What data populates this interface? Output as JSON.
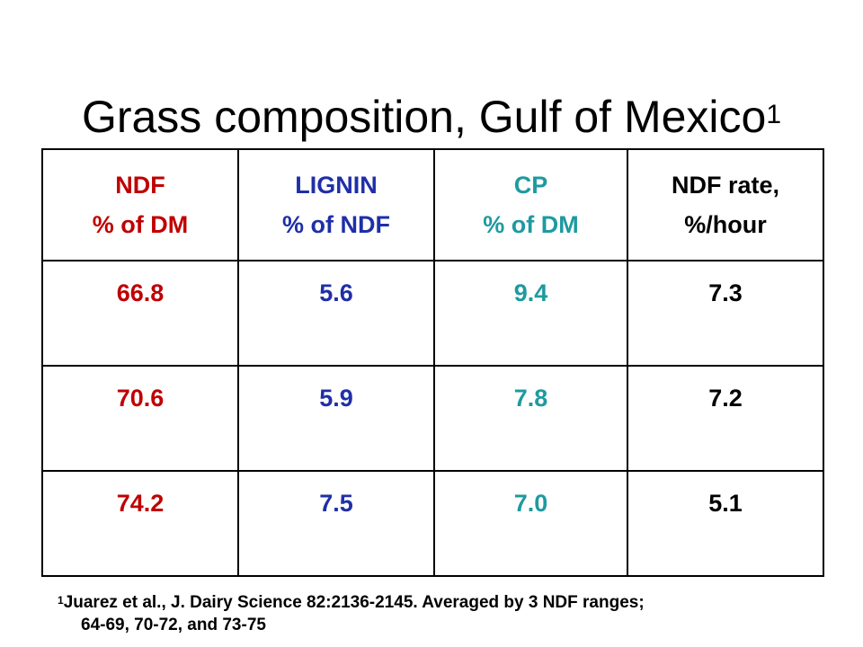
{
  "title": {
    "text": "Grass composition, Gulf of Mexico",
    "superscript": "1"
  },
  "colors": {
    "ndf": "#C00000",
    "lignin": "#1F2FA8",
    "cp": "#1E9AA0",
    "ndf_rate": "#000000"
  },
  "table": {
    "headers": [
      {
        "line1": "NDF",
        "line2": "% of DM"
      },
      {
        "line1": "LIGNIN",
        "line2": "% of NDF"
      },
      {
        "line1": "CP",
        "line2": "% of DM"
      },
      {
        "line1": "NDF rate,",
        "line2": "%/hour"
      }
    ],
    "rows": [
      [
        "66.8",
        "5.6",
        "9.4",
        "7.3"
      ],
      [
        "70.6",
        "5.9",
        "7.8",
        "7.2"
      ],
      [
        "74.2",
        "7.5",
        "7.0",
        "5.1"
      ]
    ]
  },
  "footnote": {
    "marker": "1",
    "line1": "Juarez et al.,  J. Dairy Science 82:2136-2145.  Averaged by 3 NDF ranges;",
    "line2": "64-69, 70-72, and 73-75"
  }
}
